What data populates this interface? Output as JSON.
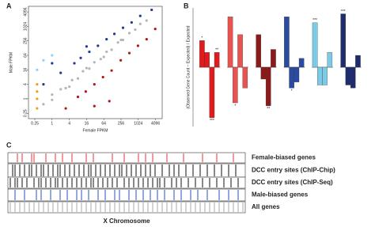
{
  "chart_data": [
    {
      "type": "scatter",
      "panel": "A",
      "xlabel": "Female FPKM",
      "ylabel": "Male FPKM",
      "log": true,
      "xlim": [
        0.15,
        7000
      ],
      "ylim": [
        0.15,
        7000
      ],
      "xticks": [
        0.25,
        1,
        4,
        16,
        64,
        256,
        1024,
        4096
      ],
      "yticks": [
        0.25,
        1,
        4,
        16,
        64,
        256,
        1024,
        4096
      ],
      "series": [
        {
          "color": "#b5b5b5",
          "x": [
            0.5,
            1,
            2,
            3,
            5,
            8,
            12,
            20,
            30,
            50,
            80,
            120,
            200,
            300,
            500,
            800,
            1200,
            2000,
            1,
            4,
            16,
            64,
            256
          ],
          "values": [
            0.6,
            0.9,
            2.5,
            2.8,
            6,
            7,
            14,
            18,
            33,
            45,
            90,
            110,
            220,
            280,
            540,
            750,
            1300,
            1800,
            1.5,
            3.2,
            19,
            55,
            280
          ]
        },
        {
          "color": "#1f3b8f",
          "x": [
            0.5,
            2,
            6,
            10,
            20,
            40,
            80,
            150,
            300,
            600,
            1200,
            3000,
            16,
            1
          ],
          "values": [
            4,
            12,
            30,
            50,
            90,
            160,
            300,
            500,
            900,
            1500,
            2800,
            5000,
            150,
            30
          ]
        },
        {
          "color": "#b2161b",
          "x": [
            3,
            8,
            15,
            30,
            60,
            120,
            250,
            500,
            1000,
            2000,
            4000,
            100,
            30
          ],
          "values": [
            0.4,
            1.2,
            2,
            4,
            8,
            15,
            40,
            80,
            160,
            300,
            800,
            0.8,
            0.5
          ]
        },
        {
          "color": "#8fd3ef",
          "x": [
            0.3,
            0.5,
            1
          ],
          "values": [
            16,
            40,
            64
          ]
        },
        {
          "color": "#f29b1d",
          "x": [
            0.3,
            0.3,
            0.3,
            0.3
          ],
          "values": [
            0.4,
            1,
            2,
            4
          ]
        }
      ]
    },
    {
      "type": "bar",
      "panel": "B",
      "ylabel": "(Observed Gene Count − Expected) / Expected",
      "ylim": [
        -1,
        1
      ],
      "series": [
        {
          "color": "#e31a1c",
          "values": [
            0.45,
            0.25,
            -0.85,
            0.25
          ],
          "stars": [
            "*",
            null,
            "***",
            "**"
          ]
        },
        {
          "color": "#e8524f",
          "values": [
            0.85,
            -0.6,
            0.55,
            -0.35
          ],
          "stars": [
            null,
            "*",
            null,
            null
          ]
        },
        {
          "color": "#8b1a1a",
          "values": [
            0.55,
            -0.2,
            -0.65,
            0.3
          ],
          "stars": [
            null,
            null,
            "**",
            null
          ]
        },
        {
          "color": "#2b4ba0",
          "values": [
            0.85,
            -0.35,
            -0.25,
            0.15
          ],
          "stars": [
            null,
            "*",
            null,
            null
          ]
        },
        {
          "color": "#7ccbe6",
          "values": [
            0.75,
            -0.3,
            -0.3,
            0.25
          ],
          "stars": [
            "***",
            null,
            null,
            null
          ]
        },
        {
          "color": "#1f2d70",
          "values": [
            0.9,
            -0.3,
            -0.35,
            0.2
          ],
          "stars": [
            "***",
            null,
            null,
            null
          ]
        }
      ]
    },
    {
      "type": "track",
      "panel": "C",
      "xlabel": "X Chromosome",
      "xlim": [
        0,
        100
      ],
      "tracks": [
        {
          "name": "Female-biased genes",
          "color": "#e8313a",
          "positions": [
            4,
            6,
            10,
            11,
            16,
            20,
            23,
            27,
            33,
            36,
            44,
            49,
            55,
            58,
            61,
            67,
            74,
            82,
            88,
            95
          ]
        },
        {
          "name": "DCC entry sites (ChIP-Chip)",
          "color": "#111111",
          "positions": [
            2,
            3,
            5,
            7,
            9,
            10,
            12,
            14,
            15,
            17,
            19,
            21,
            22,
            24,
            26,
            28,
            30,
            32,
            34,
            35,
            37,
            39,
            41,
            43,
            45,
            47,
            48,
            50,
            52,
            54,
            56,
            58,
            60,
            62,
            65,
            68,
            70,
            72,
            75,
            78,
            81,
            84,
            87,
            90,
            93,
            96
          ]
        },
        {
          "name": "DCC entry sites (ChIP-Seq)",
          "color": "#111111",
          "positions": [
            1,
            3,
            4,
            6,
            8,
            11,
            13,
            14,
            16,
            18,
            20,
            21,
            23,
            25,
            27,
            29,
            31,
            33,
            35,
            36,
            38,
            40,
            42,
            44,
            46,
            49,
            51,
            53,
            55,
            57,
            59,
            61,
            63,
            64,
            66,
            69,
            71,
            73,
            76,
            79,
            82,
            85,
            88,
            91,
            94,
            97
          ]
        },
        {
          "name": "Male-biased genes",
          "color": "#2a4fc0",
          "positions": [
            3,
            7,
            12,
            14,
            18,
            22,
            25,
            29,
            31,
            34,
            38,
            41,
            45,
            47,
            51,
            54,
            57,
            60,
            63,
            66,
            70,
            73,
            77,
            80,
            84,
            89,
            93,
            97
          ]
        },
        {
          "name": "All genes",
          "color": "#aaaaaa",
          "positions": [
            1,
            3,
            5,
            7,
            9,
            11,
            13,
            15,
            17,
            19,
            21,
            23,
            25,
            27,
            29,
            31,
            33,
            35,
            37,
            39,
            41,
            43,
            45,
            47,
            49,
            51,
            53,
            55,
            57,
            59,
            61,
            63,
            65,
            67,
            69,
            71,
            73,
            75,
            77,
            79,
            81,
            83,
            85,
            87,
            89,
            91,
            93,
            95,
            97,
            99
          ]
        }
      ]
    }
  ]
}
